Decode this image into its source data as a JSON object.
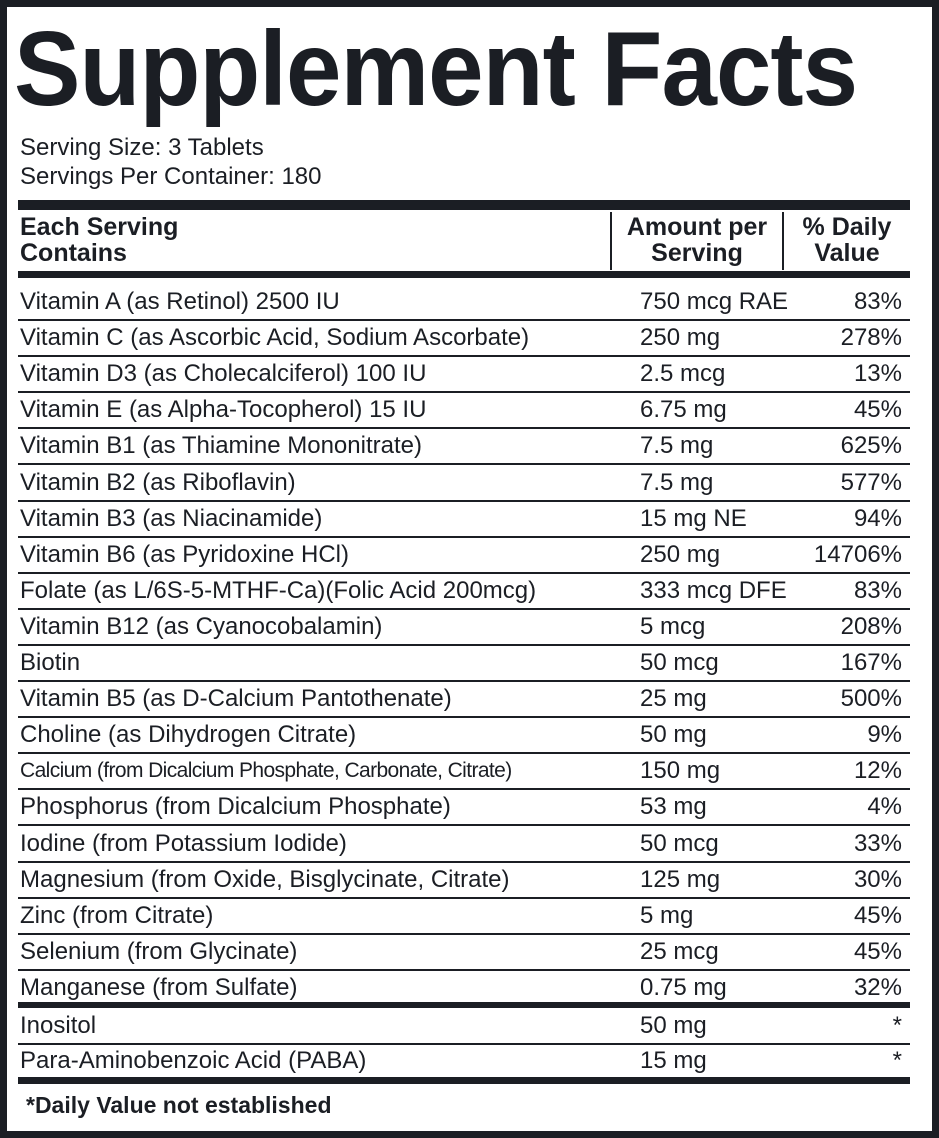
{
  "title": "Supplement Facts",
  "serving_size": "Serving Size: 3 Tablets",
  "servings_per_container": "Servings Per Container: 180",
  "headers": {
    "col1_line1": "Each Serving",
    "col1_line2": "Contains",
    "col2_line1": "Amount per",
    "col2_line2": "Serving",
    "col3_line1": "% Daily",
    "col3_line2": "Value"
  },
  "rows": [
    {
      "name": "Vitamin A (as Retinol) 2500 IU",
      "amount": "750 mcg RAE",
      "dv": "83%"
    },
    {
      "name": "Vitamin C (as Ascorbic Acid, Sodium Ascorbate)",
      "amount": "250 mg",
      "dv": "278%"
    },
    {
      "name": "Vitamin D3 (as Cholecalciferol) 100 IU",
      "amount": "2.5 mcg",
      "dv": "13%"
    },
    {
      "name": "Vitamin E (as Alpha-Tocopherol) 15 IU",
      "amount": "6.75 mg",
      "dv": "45%"
    },
    {
      "name": "Vitamin B1 (as Thiamine Mononitrate)",
      "amount": "7.5 mg",
      "dv": "625%"
    },
    {
      "name": "Vitamin B2 (as Riboflavin)",
      "amount": "7.5 mg",
      "dv": "577%"
    },
    {
      "name": "Vitamin B3 (as Niacinamide)",
      "amount": "15 mg NE",
      "dv": "94%"
    },
    {
      "name": "Vitamin B6 (as Pyridoxine HCl)",
      "amount": "250 mg",
      "dv": "14706%"
    },
    {
      "name": "Folate (as L/6S-5-MTHF-Ca)(Folic Acid 200mcg)",
      "amount": "333 mcg DFE",
      "dv": "83%"
    },
    {
      "name": "Vitamin B12 (as Cyanocobalamin)",
      "amount": "5 mcg",
      "dv": "208%"
    },
    {
      "name": "Biotin",
      "amount": "50 mcg",
      "dv": "167%"
    },
    {
      "name": "Vitamin B5 (as D-Calcium Pantothenate)",
      "amount": "25 mg",
      "dv": "500%"
    },
    {
      "name": "Choline (as Dihydrogen Citrate)",
      "amount": "50 mg",
      "dv": "9%"
    },
    {
      "name": "Calcium (from Dicalcium Phosphate, Carbonate, Citrate)",
      "amount": "150 mg",
      "dv": "12%"
    },
    {
      "name": "Phosphorus (from Dicalcium Phosphate)",
      "amount": "53 mg",
      "dv": "4%"
    },
    {
      "name": "Iodine (from Potassium Iodide)",
      "amount": "50 mcg",
      "dv": "33%"
    },
    {
      "name": "Magnesium (from Oxide, Bisglycinate, Citrate)",
      "amount": "125 mg",
      "dv": "30%"
    },
    {
      "name": "Zinc (from Citrate)",
      "amount": "5 mg",
      "dv": "45%"
    },
    {
      "name": "Selenium (from Glycinate)",
      "amount": "25 mcg",
      "dv": "45%"
    },
    {
      "name": "Manganese (from Sulfate)",
      "amount": "0.75 mg",
      "dv": "32%"
    },
    {
      "name": "Inositol",
      "amount": "50 mg",
      "dv": "*"
    },
    {
      "name": "Para-Aminobenzoic Acid (PABA)",
      "amount": "15 mg",
      "dv": "*"
    }
  ],
  "footnote": "*Daily Value not established"
}
